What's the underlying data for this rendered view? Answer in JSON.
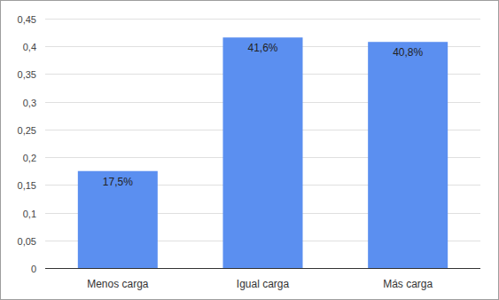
{
  "chart_data": {
    "type": "bar",
    "categories": [
      "Menos carga",
      "Igual carga",
      "Más carga"
    ],
    "values": [
      0.175,
      0.416,
      0.408
    ],
    "value_labels": [
      "17,5%",
      "41,6%",
      "40,8%"
    ],
    "color": "#5b8ff0",
    "ylim": [
      0,
      0.45
    ],
    "yticks": [
      0,
      {
        "value": 0.05,
        "label": "0,05"
      },
      {
        "value": 0.1,
        "label": "0,1"
      },
      {
        "value": 0.15,
        "label": "0,15"
      },
      {
        "value": 0.2,
        "label": "0,2"
      },
      {
        "value": 0.25,
        "label": "0,25"
      },
      {
        "value": 0.3,
        "label": "0,3"
      },
      {
        "value": 0.35,
        "label": "0,35"
      },
      {
        "value": 0.4,
        "label": "0,4"
      },
      {
        "value": 0.45,
        "label": "0,45"
      }
    ],
    "grid": true,
    "data_labels": true
  }
}
